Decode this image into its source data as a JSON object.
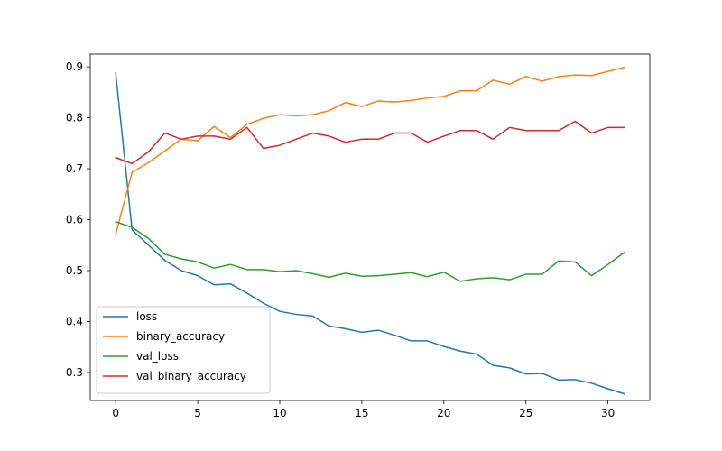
{
  "chart_data": {
    "type": "line",
    "title": "",
    "xlabel": "",
    "ylabel": "",
    "xlim": [
      -1.55,
      32.55
    ],
    "ylim": [
      0.245,
      0.925
    ],
    "xticks": [
      0,
      5,
      10,
      15,
      20,
      25,
      30
    ],
    "yticks": [
      0.3,
      0.4,
      0.5,
      0.6,
      0.7,
      0.8,
      0.9
    ],
    "xtick_labels": [
      "0",
      "5",
      "10",
      "15",
      "20",
      "25",
      "30"
    ],
    "ytick_labels": [
      "0.3",
      "0.4",
      "0.5",
      "0.6",
      "0.7",
      "0.8",
      "0.9"
    ],
    "grid": false,
    "legend_position": "lower-left",
    "x": [
      0,
      1,
      2,
      3,
      4,
      5,
      6,
      7,
      8,
      9,
      10,
      11,
      12,
      13,
      14,
      15,
      16,
      17,
      18,
      19,
      20,
      21,
      22,
      23,
      24,
      25,
      26,
      27,
      28,
      29,
      30,
      31
    ],
    "series": [
      {
        "name": "loss",
        "color": "#1f77b4",
        "values": [
          0.888,
          0.58,
          0.55,
          0.52,
          0.5,
          0.49,
          0.472,
          0.474,
          0.456,
          0.436,
          0.42,
          0.414,
          0.411,
          0.391,
          0.386,
          0.379,
          0.383,
          0.373,
          0.362,
          0.362,
          0.351,
          0.342,
          0.336,
          0.314,
          0.309,
          0.297,
          0.298,
          0.285,
          0.286,
          0.279,
          0.268,
          0.258
        ]
      },
      {
        "name": "binary_accuracy",
        "color": "#ff7f0e",
        "values": [
          0.571,
          0.693,
          0.712,
          0.735,
          0.758,
          0.755,
          0.783,
          0.761,
          0.787,
          0.799,
          0.806,
          0.804,
          0.806,
          0.814,
          0.83,
          0.822,
          0.833,
          0.831,
          0.834,
          0.839,
          0.842,
          0.853,
          0.853,
          0.874,
          0.866,
          0.881,
          0.872,
          0.881,
          0.884,
          0.883,
          0.891,
          0.899
        ]
      },
      {
        "name": "val_loss",
        "color": "#2ca02c",
        "values": [
          0.596,
          0.585,
          0.563,
          0.532,
          0.523,
          0.517,
          0.505,
          0.512,
          0.502,
          0.502,
          0.498,
          0.5,
          0.494,
          0.487,
          0.495,
          0.489,
          0.49,
          0.493,
          0.496,
          0.488,
          0.497,
          0.479,
          0.484,
          0.486,
          0.482,
          0.493,
          0.493,
          0.519,
          0.517,
          0.49,
          0.512,
          0.536
        ]
      },
      {
        "name": "val_binary_accuracy",
        "color": "#d62728",
        "values": [
          0.722,
          0.71,
          0.733,
          0.77,
          0.758,
          0.764,
          0.764,
          0.758,
          0.781,
          0.74,
          0.746,
          0.758,
          0.77,
          0.764,
          0.752,
          0.758,
          0.758,
          0.77,
          0.77,
          0.752,
          0.764,
          0.775,
          0.775,
          0.758,
          0.781,
          0.775,
          0.775,
          0.775,
          0.793,
          0.77,
          0.781,
          0.781
        ]
      }
    ]
  }
}
